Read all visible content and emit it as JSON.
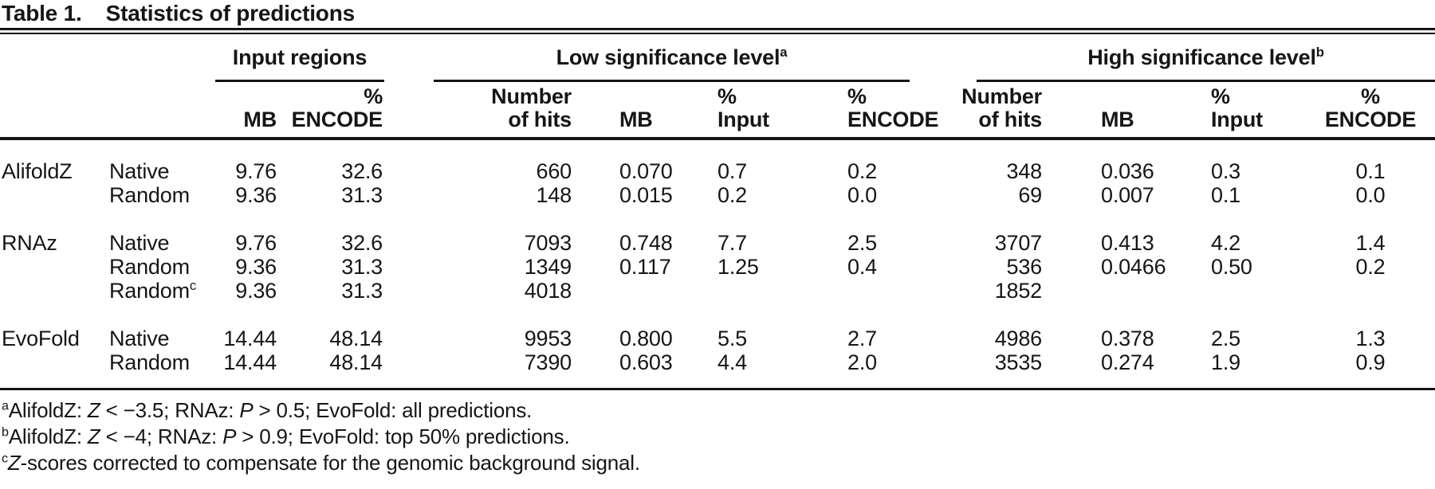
{
  "title": {
    "label": "Table 1.",
    "text": "Statistics of predictions"
  },
  "header": {
    "groups": [
      {
        "label": "Input regions",
        "sup": ""
      },
      {
        "label": "Low significance level",
        "sup": "a"
      },
      {
        "label": "High significance level",
        "sup": "b"
      }
    ],
    "columns": [
      "",
      "",
      "MB",
      "%\nENCODE",
      "Number\nof hits",
      "MB",
      "%\nInput",
      "%\nENCODE",
      "Number\nof hits",
      "MB",
      "%\nInput",
      "%\nENCODE"
    ]
  },
  "table": {
    "rows": [
      {
        "method": "AlifoldZ",
        "set": "Native",
        "set_sup": "",
        "cells": [
          "9.76",
          "32.6",
          "660",
          "0.070",
          "0.7",
          "0.2",
          "348",
          "0.036",
          "0.3",
          "0.1"
        ]
      },
      {
        "method": "",
        "set": "Random",
        "set_sup": "",
        "cells": [
          "9.36",
          "31.3",
          "148",
          "0.015",
          "0.2",
          "0.0",
          "69",
          "0.007",
          "0.1",
          "0.0"
        ]
      },
      {
        "method": "RNAz",
        "set": "Native",
        "set_sup": "",
        "cells": [
          "9.76",
          "32.6",
          "7093",
          "0.748",
          "7.7",
          "2.5",
          "3707",
          "0.413",
          "4.2",
          "1.4"
        ]
      },
      {
        "method": "",
        "set": "Random",
        "set_sup": "",
        "cells": [
          "9.36",
          "31.3",
          "1349",
          "0.117",
          "1.25",
          "0.4",
          "536",
          "0.0466",
          "0.50",
          "0.2"
        ]
      },
      {
        "method": "",
        "set": "Random",
        "set_sup": "c",
        "cells": [
          "9.36",
          "31.3",
          "4018",
          "",
          "",
          "",
          "1852",
          "",
          "",
          ""
        ]
      },
      {
        "method": "EvoFold",
        "set": "Native",
        "set_sup": "",
        "cells": [
          "14.44",
          "48.14",
          "9953",
          "0.800",
          "5.5",
          "2.7",
          "4986",
          "0.378",
          "2.5",
          "1.3"
        ]
      },
      {
        "method": "",
        "set": "Random",
        "set_sup": "",
        "cells": [
          "14.44",
          "48.14",
          "7390",
          "0.603",
          "4.4",
          "2.0",
          "3535",
          "0.274",
          "1.9",
          "0.9"
        ]
      }
    ]
  },
  "footnotes": [
    {
      "marker": "a",
      "segments": [
        {
          "t": "AlifoldZ: "
        },
        {
          "t": "Z",
          "i": true
        },
        {
          "t": " < −3.5; RNAz: "
        },
        {
          "t": "P",
          "i": true
        },
        {
          "t": " > 0.5; EvoFold: all predictions."
        }
      ]
    },
    {
      "marker": "b",
      "segments": [
        {
          "t": "AlifoldZ: "
        },
        {
          "t": "Z",
          "i": true
        },
        {
          "t": " < −4; RNAz: "
        },
        {
          "t": "P",
          "i": true
        },
        {
          "t": " > 0.9; EvoFold: top 50% predictions."
        }
      ]
    },
    {
      "marker": "c",
      "segments": [
        {
          "t": "Z",
          "i": true
        },
        {
          "t": "-scores corrected to compensate for the genomic background signal."
        }
      ]
    }
  ]
}
